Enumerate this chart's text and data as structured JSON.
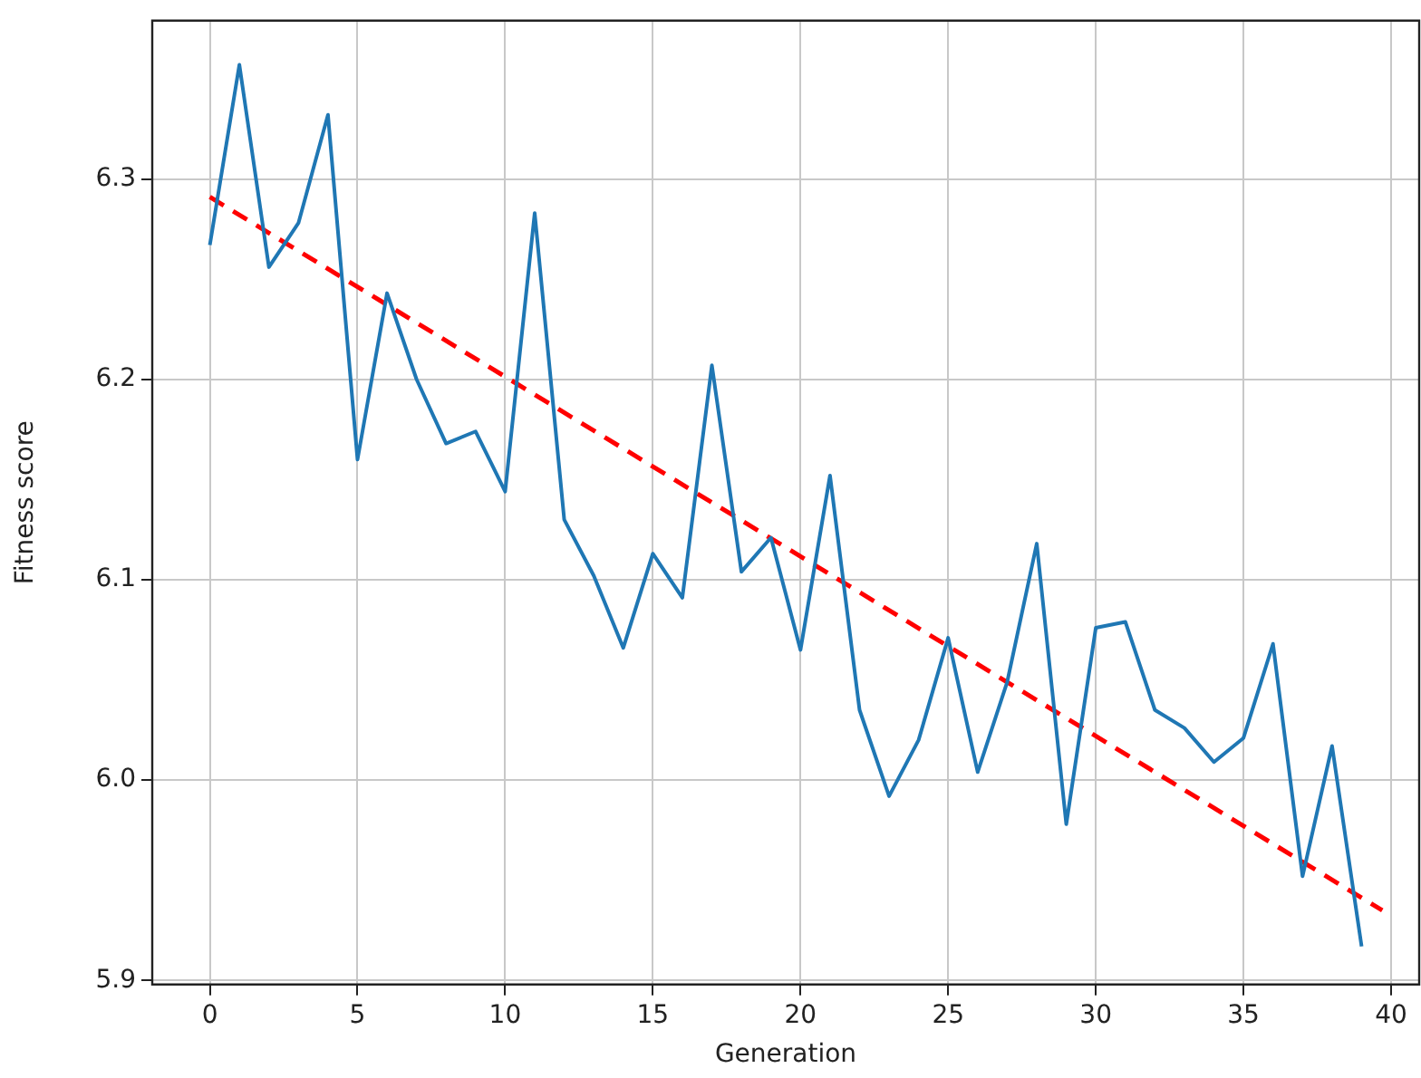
{
  "chart_data": {
    "type": "line",
    "xlabel": "Generation",
    "ylabel": "Fitness score",
    "xlim": [
      -1.95,
      40.95
    ],
    "xticks": [
      0,
      5,
      10,
      15,
      20,
      25,
      30,
      35,
      40
    ],
    "ylim": [
      5.898,
      6.379
    ],
    "yticks": [
      5.9,
      {
        "value": 6,
        "label": "6.0"
      },
      6.1,
      6.2,
      6.3
    ],
    "grid": true,
    "series": [
      {
        "color": "#1f77b4",
        "line_style": "solid",
        "x": [
          0,
          1,
          2,
          3,
          4,
          5,
          6,
          7,
          8,
          9,
          10,
          11,
          12,
          13,
          14,
          15,
          16,
          17,
          18,
          19,
          20,
          21,
          22,
          23,
          24,
          25,
          26,
          27,
          28,
          29,
          30,
          31,
          32,
          33,
          34,
          35,
          36,
          37,
          38,
          39
        ],
        "values": [
          6.267,
          6.357,
          6.256,
          6.278,
          6.332,
          6.16,
          6.243,
          6.2,
          6.168,
          6.174,
          6.144,
          6.283,
          6.13,
          6.102,
          6.066,
          6.113,
          6.091,
          6.207,
          6.104,
          6.121,
          6.065,
          6.152,
          6.035,
          5.992,
          6.02,
          6.071,
          6.004,
          6.049,
          6.118,
          5.978,
          6.076,
          6.079,
          6.035,
          6.026,
          6.009,
          6.021,
          6.068,
          5.952,
          6.017,
          5.917
        ]
      },
      {
        "color": "#ff0000",
        "line_style": "dashed",
        "x": [
          0,
          39.7
        ],
        "values": [
          6.291,
          5.935
        ]
      }
    ]
  }
}
